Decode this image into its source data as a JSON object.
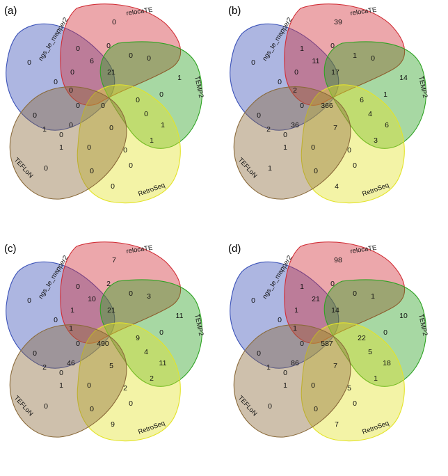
{
  "set_names": [
    "ngs_te_mapper2",
    "relocaTE",
    "TEMP2",
    "RetroSeq",
    "TEFLoN"
  ],
  "set_colors": [
    "#3b52b8",
    "#d12e36",
    "#2ea323",
    "#e3e32a",
    "#8a6a3a"
  ],
  "region_order": [
    "A",
    "B",
    "C",
    "D",
    "E",
    "AB",
    "AC",
    "AD",
    "AE",
    "BC",
    "BD",
    "BE",
    "CD",
    "CE",
    "DE",
    "ABC",
    "ABD",
    "ABE",
    "ACD",
    "ACE",
    "ADE",
    "BCD",
    "BCE",
    "BDE",
    "CDE",
    "ABCD",
    "ABCE",
    "ABDE",
    "ACDE",
    "BCDE",
    "ABCDE"
  ],
  "panels": [
    {
      "letter": "(a)",
      "counts": {
        "A": "0",
        "B": "0",
        "C": "1",
        "D": "0",
        "E": "0",
        "AB": "0",
        "AC": "0",
        "AD": "0",
        "AE": "0",
        "BC": "0",
        "BD": "0",
        "BE": "0",
        "CD": "1",
        "CE": "1",
        "DE": "0",
        "ABC": "6",
        "ABD": "0",
        "ABE": "0",
        "ACD": "0",
        "ACE": "0",
        "ADE": "1",
        "BCD": "1",
        "BCE": "0",
        "BDE": "0",
        "CDE": "0",
        "ABCD": "21",
        "ABCE": "0",
        "ABDE": "0",
        "ACDE": "0",
        "BCDE": "0",
        "ABCDE": "0"
      }
    },
    {
      "letter": "(b)",
      "counts": {
        "A": "0",
        "B": "39",
        "C": "14",
        "D": "4",
        "E": "1",
        "AB": "1",
        "AC": "0",
        "AD": "0",
        "AE": "0",
        "BC": "0",
        "BD": "0",
        "BE": "0",
        "CD": "6",
        "CE": "1",
        "DE": "0",
        "ABC": "11",
        "ABD": "1",
        "ABE": "2",
        "ACD": "1",
        "ACE": "4",
        "ADE": "2",
        "BCD": "3",
        "BCE": "0",
        "BDE": "0",
        "CDE": "7",
        "ABCD": "17",
        "ABCE": "6",
        "ABDE": "0",
        "ACDE": "36",
        "BCDE": "0",
        "ABCDE": "366"
      }
    },
    {
      "letter": "(c)",
      "counts": {
        "A": "0",
        "B": "7",
        "C": "11",
        "D": "9",
        "E": "0",
        "AB": "0",
        "AC": "0",
        "AD": "0",
        "AE": "0",
        "BC": "3",
        "BD": "2",
        "BE": "1",
        "CD": "11",
        "CE": "1",
        "DE": "0",
        "ABC": "10",
        "ABD": "0",
        "ABE": "1",
        "ACD": "0",
        "ACE": "4",
        "ADE": "2",
        "BCD": "2",
        "BCE": "0",
        "BDE": "0",
        "CDE": "5",
        "ABCD": "21",
        "ABCE": "9",
        "ABDE": "2",
        "ACDE": "46",
        "BCDE": "0",
        "ABCDE": "490"
      }
    },
    {
      "letter": "(d)",
      "counts": {
        "A": "0",
        "B": "98",
        "C": "10",
        "D": "7",
        "E": "0",
        "AB": "1",
        "AC": "0",
        "AD": "0",
        "AE": "0",
        "BC": "1",
        "BD": "0",
        "BE": "1",
        "CD": "18",
        "CE": "1",
        "DE": "0",
        "ABC": "21",
        "ABD": "0",
        "ABE": "1",
        "ACD": "0",
        "ACE": "5",
        "ADE": "1",
        "BCD": "1",
        "BCE": "0",
        "BDE": "0",
        "CDE": "7",
        "ABCD": "14",
        "ABCE": "22",
        "ABDE": "5",
        "ACDE": "86",
        "BCDE": "0",
        "ABCDE": "587"
      }
    }
  ]
}
